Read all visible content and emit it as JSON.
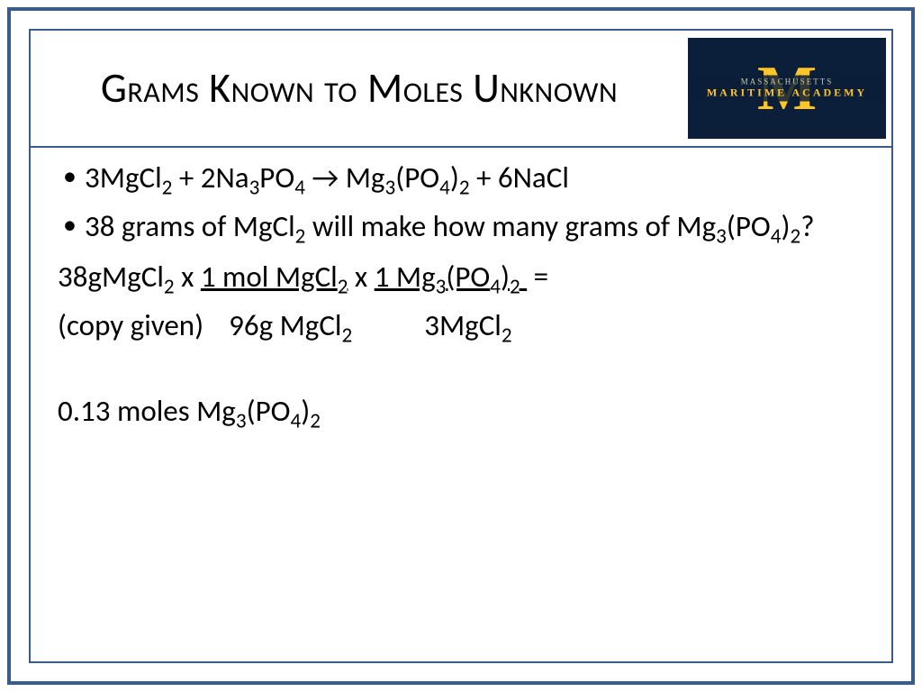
{
  "title": "Grams Known to Moles Unknown",
  "logo": {
    "letter": "M",
    "top_text": "MASSACHUSETTS",
    "bottom_text": "MARITIME ACADEMY",
    "bg_color": "#0b1f3a",
    "accent_color": "#ffc629"
  },
  "bullets": {
    "eq_prefix": "3MgCl",
    "eq_a": " + 2Na",
    "eq_b": "PO",
    "eq_c": " → Mg",
    "eq_d": "(PO",
    "eq_e": ")",
    "eq_f": " + 6NaCl",
    "q_a": "38 grams of MgCl",
    "q_b": " will make how many grams of Mg",
    "q_c": "(PO",
    "q_d": ")",
    "q_e": "?"
  },
  "calc": {
    "l1_a": "38gMgCl",
    "l1_b": " x ",
    "l1_c": "1 mol MgCl",
    "l1_d": " x ",
    "l1_e": "1 Mg",
    "l1_f": "(PO",
    "l1_g": ")",
    "l1_h": " =",
    "l2_a": "(copy given)",
    "l2_b": "96g MgCl",
    "l2_c": "3MgCl",
    "ans_a": "0.13 moles Mg",
    "ans_b": "(PO",
    "ans_c": ")"
  },
  "subs": {
    "two": "2",
    "three": "3",
    "four": "4"
  },
  "colors": {
    "border": "#385d8a",
    "text": "#000000",
    "background": "#ffffff"
  },
  "typography": {
    "title_fontsize": 46,
    "body_fontsize": 33,
    "font_family": "Calibri"
  }
}
